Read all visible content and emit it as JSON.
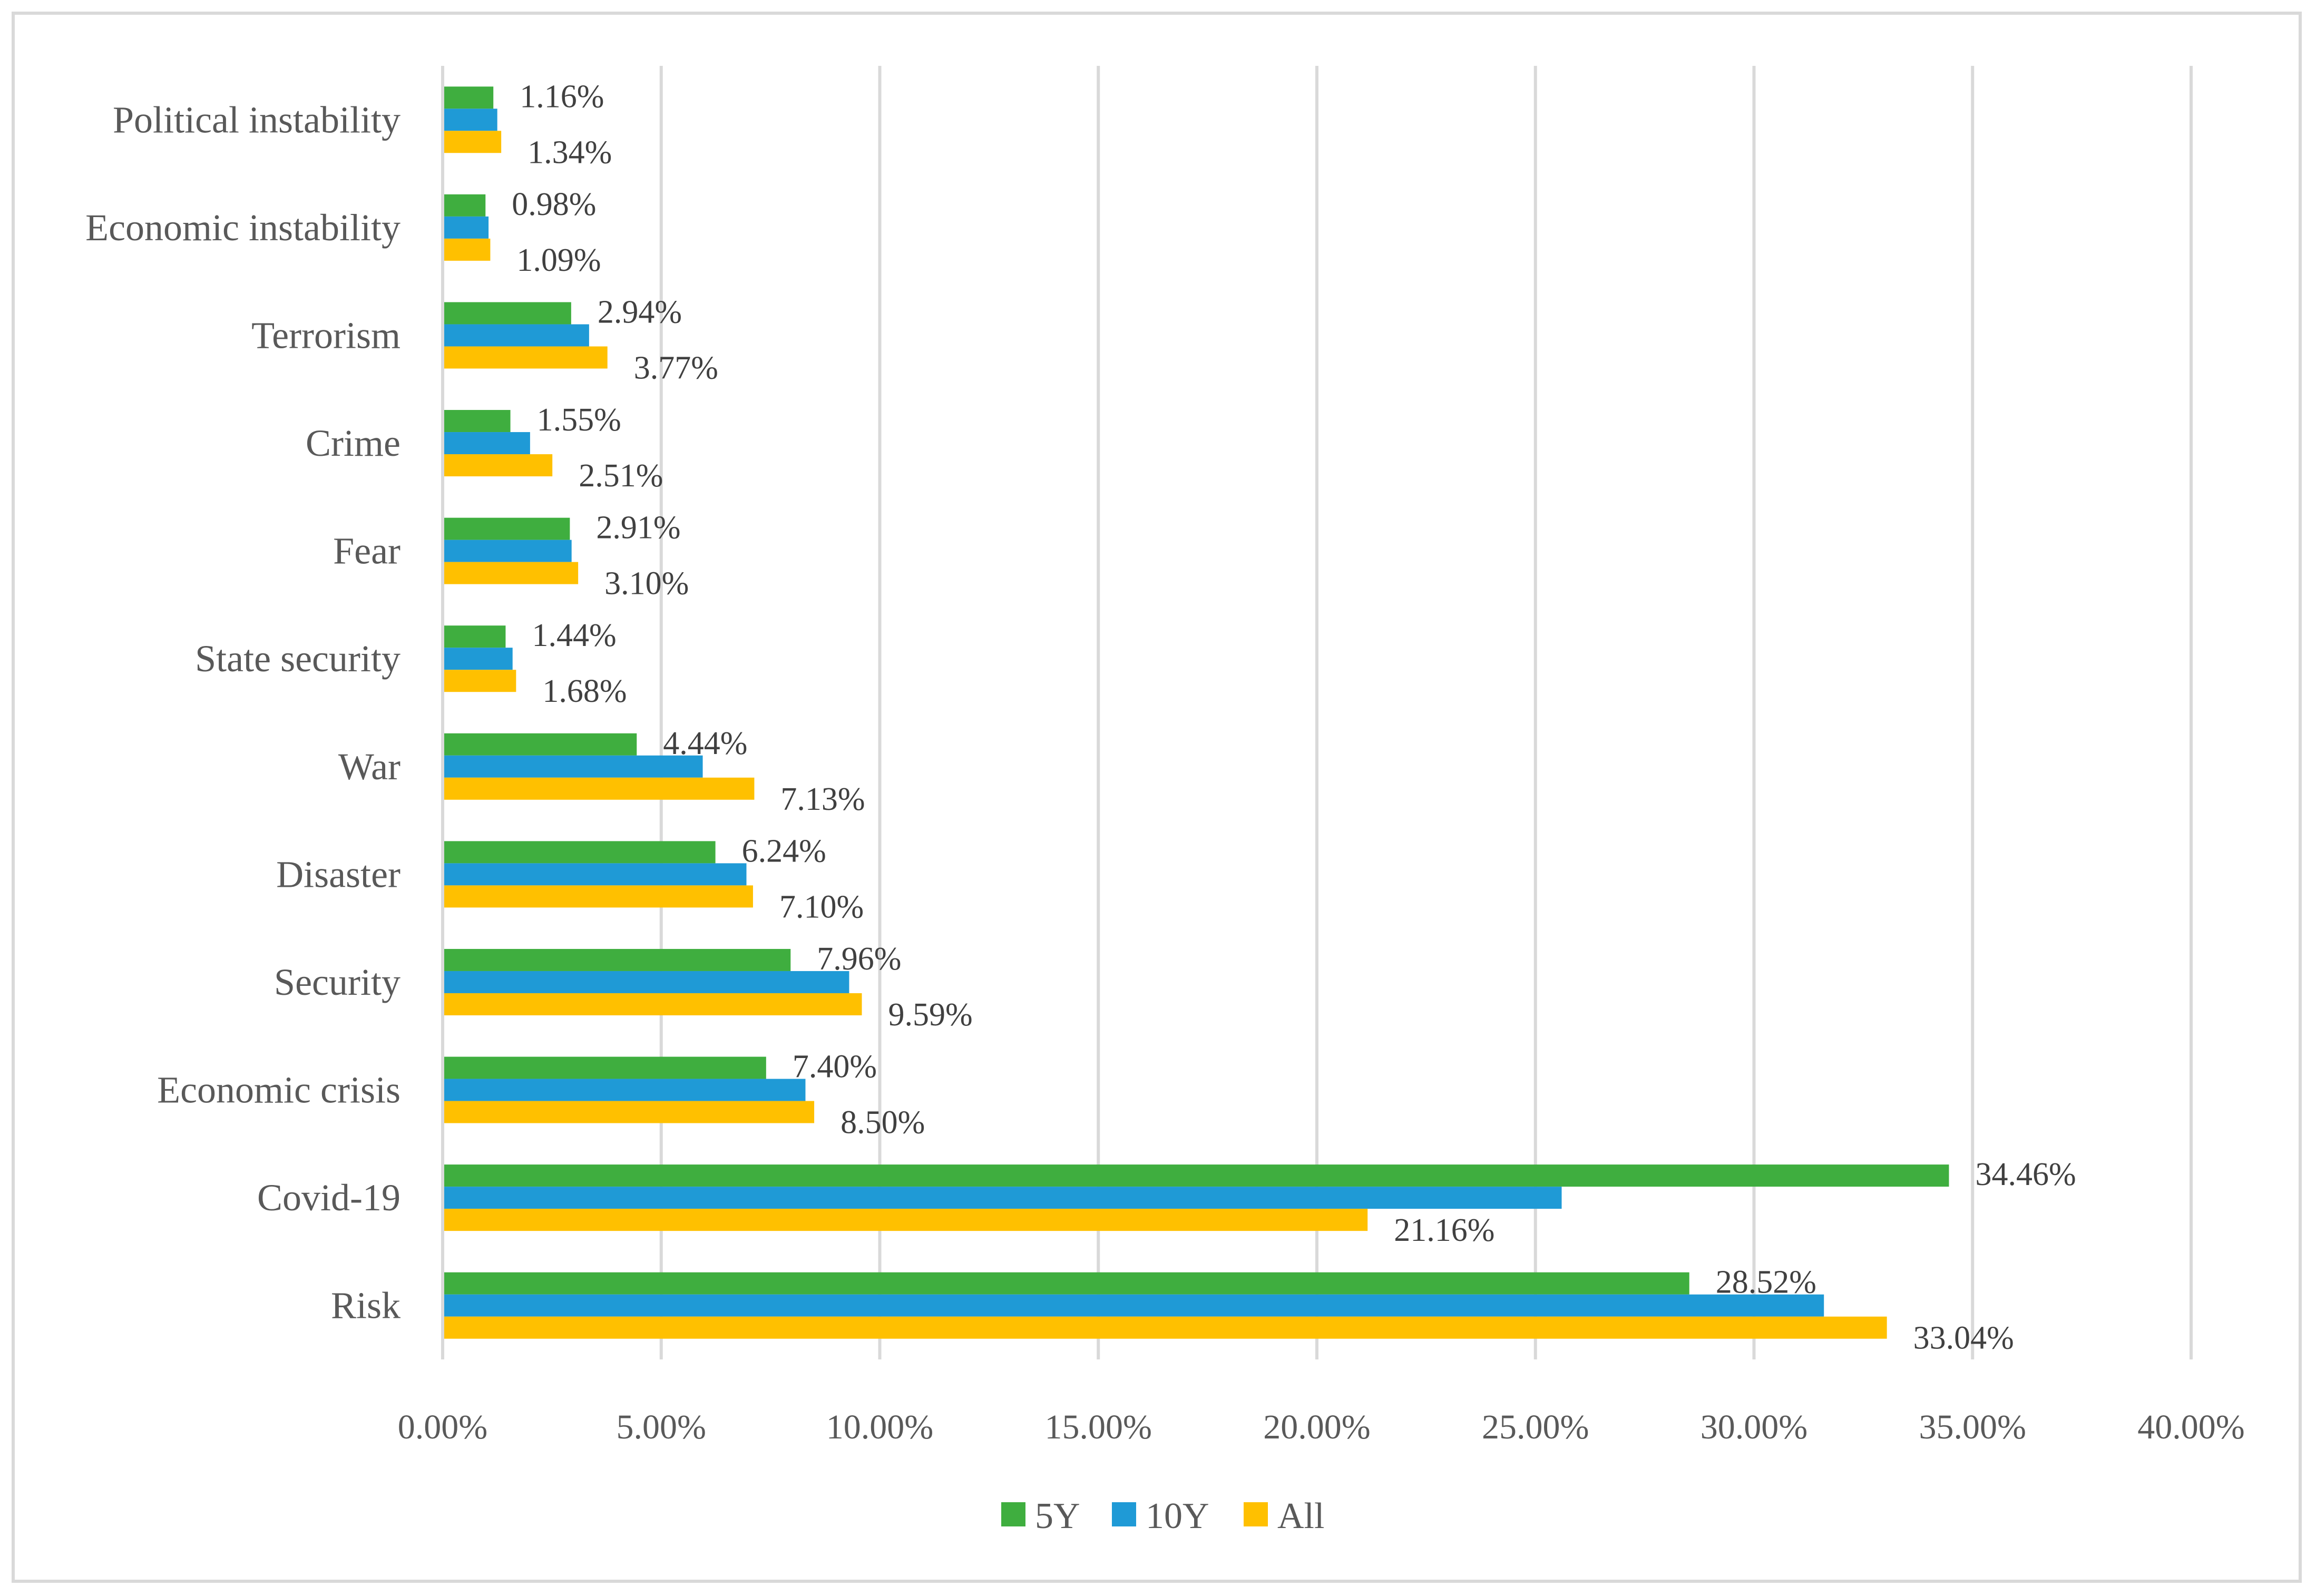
{
  "chart_data": {
    "type": "bar",
    "orientation": "horizontal",
    "title": "",
    "xlabel": "",
    "ylabel": "",
    "categories": [
      "Political instability",
      "Economic instability",
      "Terrorism",
      "Crime",
      "Fear",
      "State security",
      "War",
      "Disaster",
      "Security",
      "Economic crisis",
      "Covid-19",
      "Risk"
    ],
    "series": [
      {
        "name": "5Y",
        "color": "#3fae3f",
        "values": [
          1.16,
          0.98,
          2.94,
          1.55,
          2.91,
          1.44,
          4.44,
          6.24,
          7.96,
          7.4,
          34.46,
          28.52
        ],
        "labels": [
          "1.16%",
          "0.98%",
          "2.94%",
          "1.55%",
          "2.91%",
          "1.44%",
          "4.44%",
          "6.24%",
          "7.96%",
          "7.40%",
          "34.46%",
          "28.52%"
        ]
      },
      {
        "name": "10Y",
        "color": "#1f9ad6",
        "values": [
          1.25,
          1.05,
          3.35,
          2.0,
          2.95,
          1.6,
          5.95,
          6.95,
          9.3,
          8.3,
          25.6,
          31.6
        ],
        "labels": []
      },
      {
        "name": "All",
        "color": "#ffc000",
        "values": [
          1.34,
          1.09,
          3.77,
          2.51,
          3.1,
          1.68,
          7.13,
          7.1,
          9.59,
          8.5,
          21.16,
          33.04
        ],
        "labels": [
          "1.34%",
          "1.09%",
          "3.77%",
          "2.51%",
          "3.10%",
          "1.68%",
          "7.13%",
          "7.10%",
          "9.59%",
          "8.50%",
          "21.16%",
          "33.04%"
        ]
      }
    ],
    "xlim": [
      0,
      40
    ],
    "xticks": [
      "0.00%",
      "5.00%",
      "10.00%",
      "15.00%",
      "20.00%",
      "25.00%",
      "30.00%",
      "35.00%",
      "40.00%"
    ],
    "xtick_values": [
      0,
      5,
      10,
      15,
      20,
      25,
      30,
      35,
      40
    ],
    "grid": true,
    "legend": {
      "placement": "bottom-center",
      "entries": [
        "5Y",
        "10Y",
        "All"
      ]
    },
    "colors": {
      "gridline": "#d9d9d9",
      "axis": "#d9d9d9",
      "text": "#595959"
    }
  }
}
